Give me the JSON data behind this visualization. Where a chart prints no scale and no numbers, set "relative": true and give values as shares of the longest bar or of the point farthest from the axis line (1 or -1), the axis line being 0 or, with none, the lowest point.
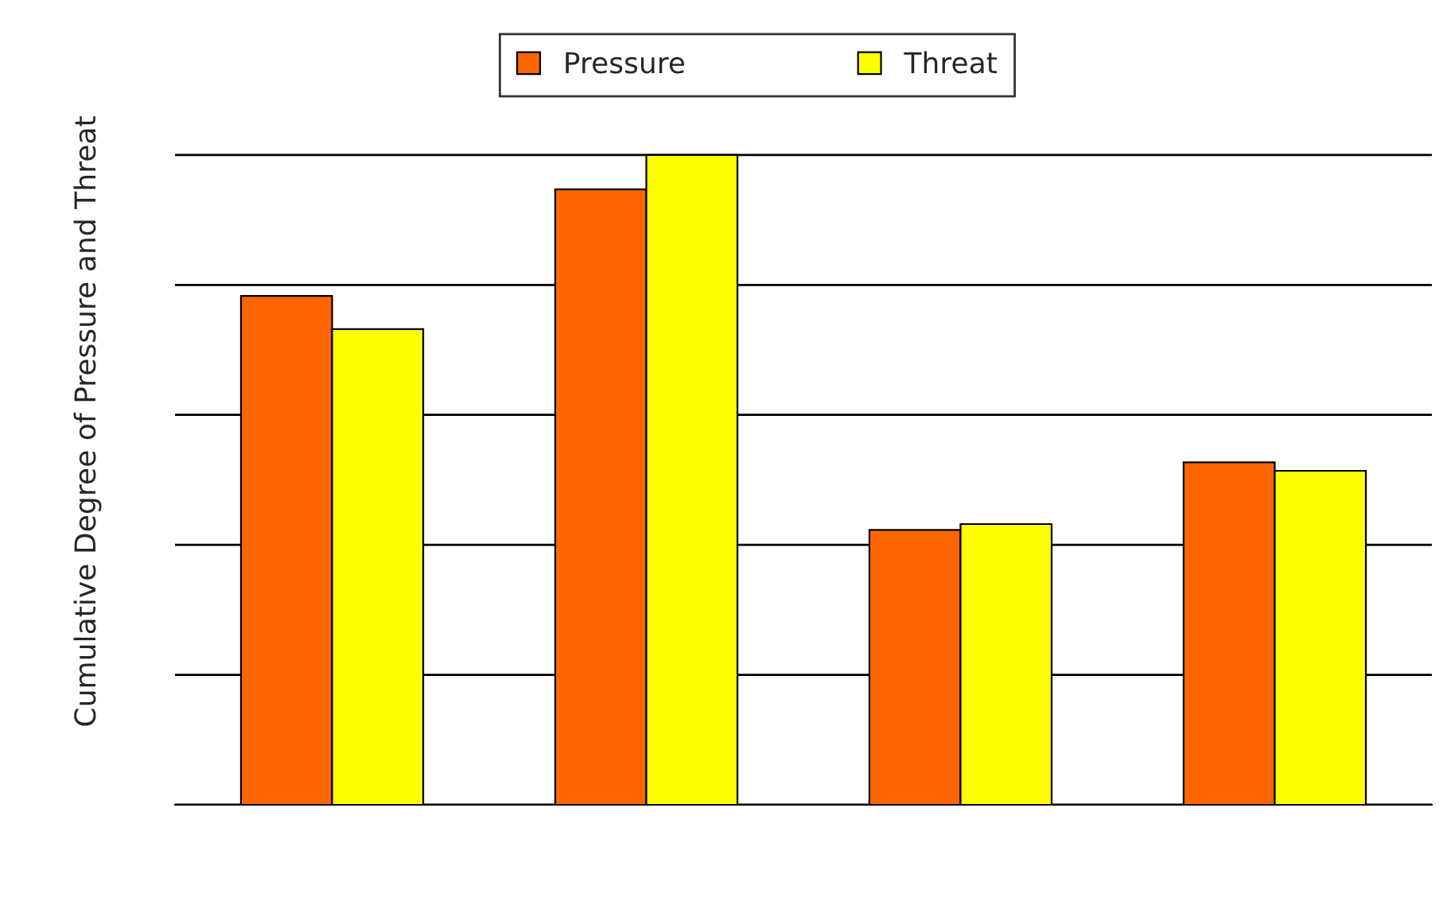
{
  "chart_data": {
    "type": "bar",
    "relative": true,
    "ylabel": "Cumulative Degree of Pressure and Threat",
    "categories": [
      null,
      null,
      null,
      null
    ],
    "series": [
      {
        "name": "Pressure",
        "color": "#ff6600",
        "values": [
          0.783,
          0.947,
          0.423,
          0.527
        ]
      },
      {
        "name": "Threat",
        "color": "#ffff00",
        "values": [
          0.732,
          1,
          0.432,
          0.514
        ]
      }
    ],
    "grid": "y",
    "legend": "top"
  }
}
